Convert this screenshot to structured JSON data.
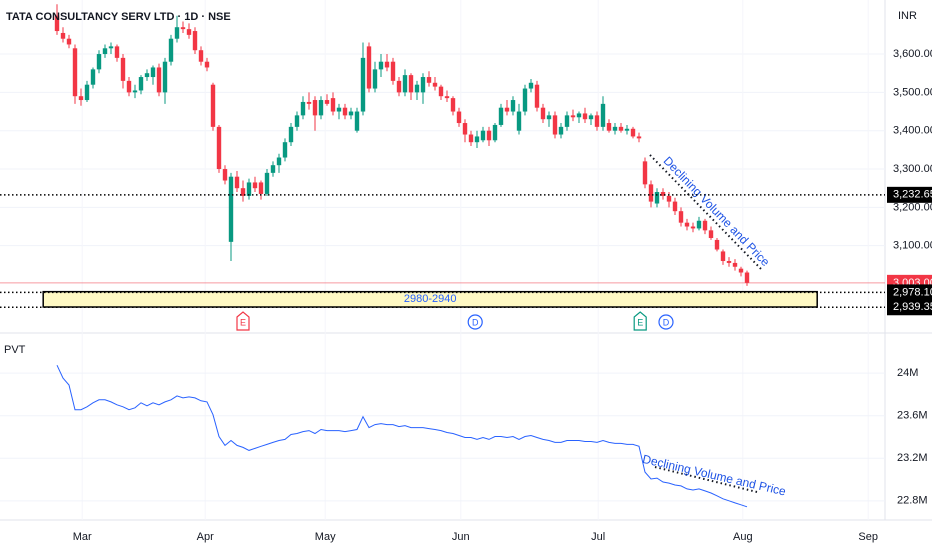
{
  "chart_data": [
    {
      "type": "candlestick",
      "title": "TATA CONSULTANCY SERV LTD · 1D · NSE",
      "currency": "INR",
      "xlim": [
        -9.5,
        138
      ],
      "xticks": [
        {
          "value": 4.2,
          "label": "Mar"
        },
        {
          "value": 24.7,
          "label": "Apr"
        },
        {
          "value": 44.7,
          "label": "May"
        },
        {
          "value": 67.3,
          "label": "Jun"
        },
        {
          "value": 90.2,
          "label": "Jul"
        },
        {
          "value": 114.3,
          "label": "Aug"
        },
        {
          "value": 135.2,
          "label": "Sep"
        }
      ],
      "ylim": [
        2880,
        3741
      ],
      "yticks": [
        {
          "value": 3100,
          "label": "3,100.00"
        },
        {
          "value": 3200,
          "label": "3,200.00"
        },
        {
          "value": 3300,
          "label": "3,300.00"
        },
        {
          "value": 3400,
          "label": "3,400.00"
        },
        {
          "value": 3500,
          "label": "3,500.00"
        },
        {
          "value": 3600,
          "label": "3,600.00"
        }
      ],
      "grid": true,
      "candles": {
        "up_color": "#089981",
        "down_color": "#f23645",
        "open": [
          3700,
          3655,
          3640,
          3615,
          3490,
          3480,
          3520,
          3560,
          3600,
          3615,
          3620,
          3590,
          3530,
          3500,
          3505,
          3540,
          3540,
          3565,
          3500,
          3580,
          3640,
          3670,
          3665,
          3660,
          3610,
          3580,
          3520,
          3410,
          3300,
          3110,
          3280,
          3250,
          3230,
          3265,
          3265,
          3235,
          3290,
          3310,
          3330,
          3370,
          3410,
          3440,
          3475,
          3480,
          3440,
          3480,
          3485,
          3450,
          3460,
          3440,
          3400,
          3450,
          3620,
          3510,
          3560,
          3580,
          3580,
          3530,
          3500,
          3545,
          3500,
          3500,
          3540,
          3525,
          3515,
          3490,
          3485,
          3450,
          3420,
          3390,
          3370,
          3375,
          3400,
          3375,
          3415,
          3460,
          3450,
          3400,
          3450,
          3510,
          3520,
          3460,
          3430,
          3440,
          3390,
          3410,
          3440,
          3435,
          3445,
          3430,
          3440,
          3410,
          3420,
          3400,
          3410,
          3400,
          3405,
          3385,
          3320,
          3260,
          3210,
          3240,
          3230,
          3215,
          3190,
          3160,
          3150,
          3145,
          3165,
          3140,
          3115,
          3085,
          3060,
          3055,
          3040,
          3030
        ],
        "high": [
          3730,
          3670,
          3650,
          3625,
          3510,
          3530,
          3565,
          3610,
          3625,
          3630,
          3625,
          3600,
          3540,
          3520,
          3545,
          3560,
          3570,
          3575,
          3590,
          3650,
          3700,
          3685,
          3680,
          3670,
          3620,
          3590,
          3525,
          3415,
          3310,
          3290,
          3295,
          3270,
          3275,
          3280,
          3270,
          3300,
          3320,
          3340,
          3380,
          3420,
          3450,
          3490,
          3500,
          3490,
          3490,
          3495,
          3500,
          3470,
          3470,
          3460,
          3460,
          3630,
          3630,
          3580,
          3600,
          3600,
          3590,
          3540,
          3560,
          3550,
          3530,
          3550,
          3555,
          3540,
          3520,
          3505,
          3490,
          3460,
          3430,
          3400,
          3400,
          3410,
          3410,
          3420,
          3470,
          3480,
          3490,
          3470,
          3520,
          3535,
          3530,
          3470,
          3450,
          3450,
          3420,
          3450,
          3455,
          3450,
          3460,
          3445,
          3450,
          3490,
          3430,
          3420,
          3420,
          3415,
          3410,
          3395,
          3330,
          3270,
          3250,
          3250,
          3240,
          3225,
          3200,
          3170,
          3160,
          3175,
          3170,
          3150,
          3120,
          3090,
          3070,
          3065,
          3045,
          3035
        ],
        "low": [
          3650,
          3630,
          3615,
          3470,
          3465,
          3475,
          3510,
          3550,
          3590,
          3600,
          3580,
          3510,
          3490,
          3485,
          3495,
          3530,
          3520,
          3490,
          3470,
          3570,
          3630,
          3655,
          3640,
          3600,
          3570,
          3555,
          3400,
          3290,
          3260,
          3060,
          3240,
          3215,
          3220,
          3240,
          3220,
          3230,
          3280,
          3290,
          3320,
          3360,
          3400,
          3430,
          3455,
          3400,
          3430,
          3465,
          3440,
          3430,
          3430,
          3430,
          3395,
          3440,
          3500,
          3500,
          3540,
          3555,
          3520,
          3490,
          3490,
          3480,
          3480,
          3470,
          3515,
          3505,
          3480,
          3475,
          3440,
          3410,
          3370,
          3360,
          3355,
          3370,
          3360,
          3370,
          3410,
          3440,
          3440,
          3390,
          3440,
          3500,
          3450,
          3420,
          3410,
          3380,
          3380,
          3400,
          3425,
          3420,
          3420,
          3415,
          3400,
          3400,
          3395,
          3390,
          3395,
          3390,
          3380,
          3370,
          3250,
          3200,
          3200,
          3220,
          3200,
          3180,
          3150,
          3140,
          3135,
          3140,
          3130,
          3115,
          3085,
          3050,
          3045,
          3035,
          3020,
          2995
        ],
        "close": [
          3660,
          3640,
          3625,
          3490,
          3480,
          3520,
          3560,
          3600,
          3615,
          3620,
          3590,
          3530,
          3500,
          3505,
          3540,
          3550,
          3565,
          3500,
          3580,
          3640,
          3670,
          3665,
          3650,
          3610,
          3580,
          3565,
          3410,
          3300,
          3270,
          3280,
          3250,
          3230,
          3265,
          3250,
          3235,
          3290,
          3310,
          3330,
          3370,
          3410,
          3440,
          3475,
          3470,
          3440,
          3480,
          3470,
          3450,
          3460,
          3440,
          3450,
          3450,
          3590,
          3510,
          3560,
          3580,
          3565,
          3530,
          3500,
          3545,
          3500,
          3520,
          3540,
          3525,
          3515,
          3490,
          3485,
          3450,
          3420,
          3390,
          3370,
          3385,
          3400,
          3375,
          3415,
          3460,
          3450,
          3480,
          3450,
          3510,
          3525,
          3460,
          3430,
          3440,
          3390,
          3410,
          3440,
          3435,
          3445,
          3430,
          3440,
          3410,
          3470,
          3400,
          3410,
          3400,
          3405,
          3385,
          3380,
          3260,
          3215,
          3240,
          3230,
          3215,
          3190,
          3160,
          3150,
          3145,
          3165,
          3140,
          3120,
          3090,
          3060,
          3055,
          3045,
          3030,
          3003
        ]
      },
      "price_lines": [
        {
          "value": 3232.65,
          "label": "3,232.65",
          "color": "#000000",
          "style": "dotted"
        },
        {
          "value": 3003,
          "label": "3,003.00",
          "color": "#f23645",
          "style": "solid"
        },
        {
          "value": 2978.1,
          "label": "2,978.10",
          "color": "#000000",
          "style": "dotted"
        },
        {
          "value": 2939.35,
          "label": "2,939.35",
          "color": "#000000",
          "style": "dotted"
        }
      ],
      "zone": {
        "label": "2980-2940",
        "top": 2980,
        "bottom": 2940,
        "x_start": -2.3,
        "x_end": 126.7,
        "color": "#fff9c4"
      },
      "events": [
        {
          "x": 31,
          "label": "E",
          "color": "#f23645"
        },
        {
          "x": 69.7,
          "label": "D",
          "color": "#2962ff"
        },
        {
          "x": 97.2,
          "label": "E",
          "color": "#089981"
        },
        {
          "x": 101.5,
          "label": "D",
          "color": "#2962ff"
        }
      ],
      "annotation": "Declining Volume and Price"
    },
    {
      "type": "line",
      "title": "PVT",
      "color": "#2962ff",
      "xlim": [
        -9.5,
        138
      ],
      "ylim": [
        22.62,
        24.33
      ],
      "yticks": [
        {
          "value": 22.8,
          "label": "22.8M"
        },
        {
          "value": 23.2,
          "label": "23.2M"
        },
        {
          "value": 23.6,
          "label": "23.6M"
        },
        {
          "value": 24,
          "label": "24M"
        }
      ],
      "values": [
        24.074,
        23.953,
        23.888,
        23.656,
        23.656,
        23.684,
        23.721,
        23.749,
        23.749,
        23.73,
        23.702,
        23.684,
        23.656,
        23.674,
        23.721,
        23.693,
        23.721,
        23.702,
        23.73,
        23.749,
        23.786,
        23.767,
        23.777,
        23.767,
        23.74,
        23.73,
        23.609,
        23.405,
        23.321,
        23.367,
        23.321,
        23.302,
        23.274,
        23.293,
        23.312,
        23.33,
        23.349,
        23.367,
        23.377,
        23.423,
        23.433,
        23.451,
        23.46,
        23.433,
        23.47,
        23.46,
        23.46,
        23.46,
        23.451,
        23.46,
        23.47,
        23.591,
        23.488,
        23.516,
        23.526,
        23.516,
        23.516,
        23.498,
        23.507,
        23.488,
        23.488,
        23.488,
        23.479,
        23.47,
        23.46,
        23.442,
        23.433,
        23.414,
        23.395,
        23.395,
        23.377,
        23.395,
        23.377,
        23.405,
        23.405,
        23.395,
        23.405,
        23.377,
        23.405,
        23.414,
        23.395,
        23.377,
        23.367,
        23.349,
        23.349,
        23.367,
        23.367,
        23.367,
        23.358,
        23.358,
        23.349,
        23.367,
        23.349,
        23.34,
        23.34,
        23.33,
        23.33,
        23.312,
        23.07,
        23.005,
        23.014,
        22.977,
        22.967,
        22.949,
        22.94,
        22.912,
        22.902,
        22.912,
        22.893,
        22.874,
        22.847,
        22.819,
        22.8,
        22.781,
        22.763,
        22.744
      ],
      "annotation": "Declining Volume and Price"
    }
  ]
}
